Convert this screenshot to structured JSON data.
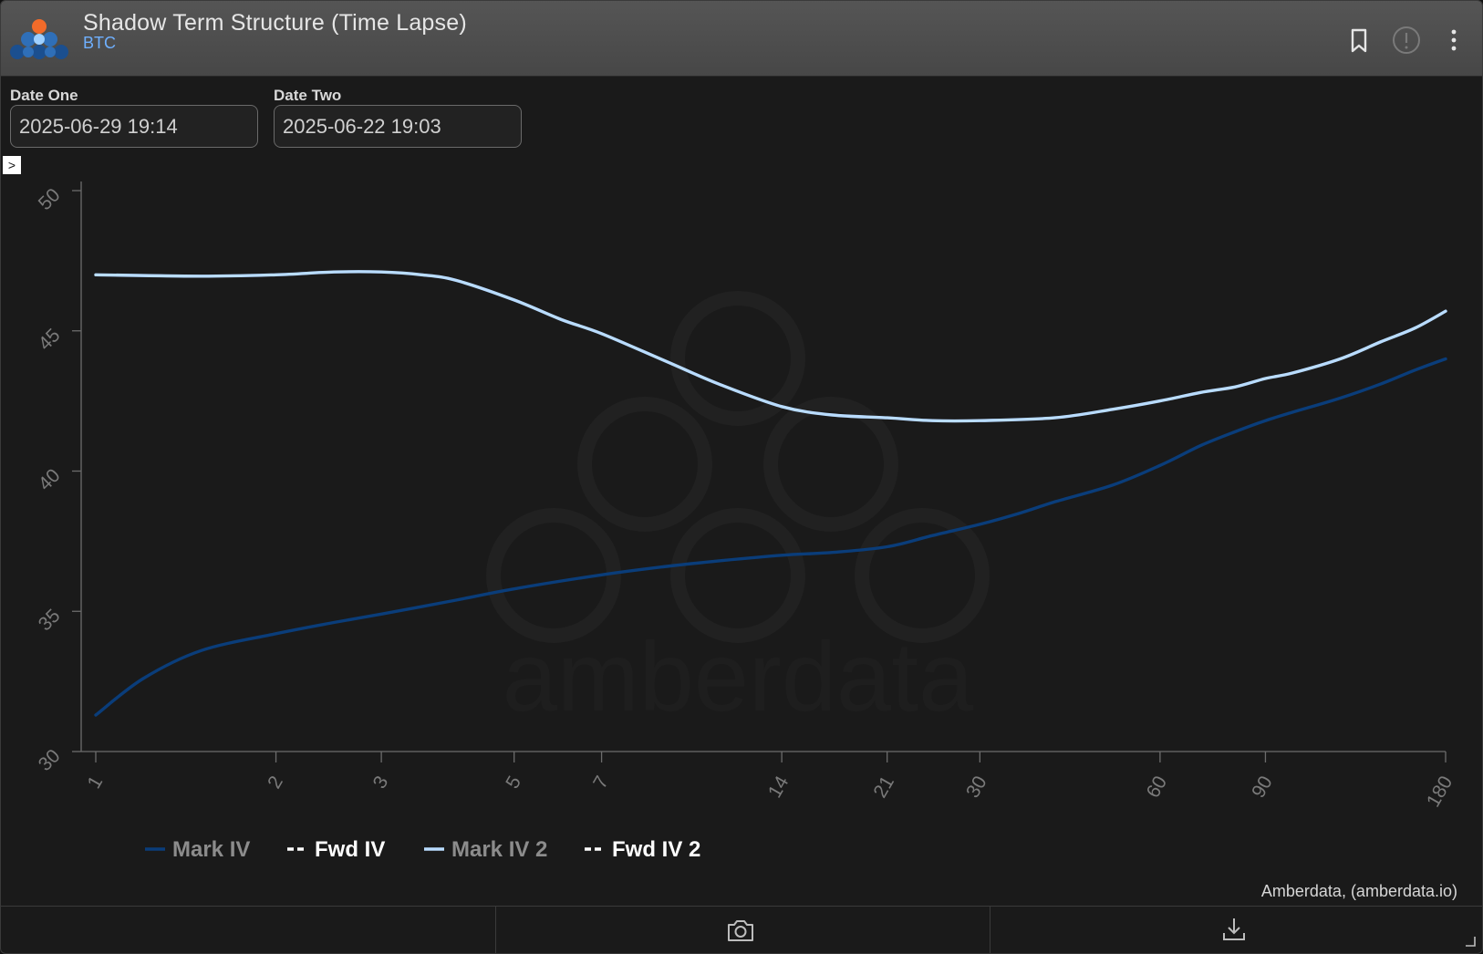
{
  "header": {
    "title": "Shadow Term Structure (Time Lapse)",
    "subtitle": "BTC",
    "icons": [
      "bookmark-icon",
      "info-icon",
      "more-vert-icon"
    ]
  },
  "controls": {
    "date_one_label": "Date One",
    "date_one_value": "2025-06-29 19:14",
    "date_two_label": "Date Two",
    "date_two_value": "2025-06-22 19:03",
    "toggle_glyph": ">"
  },
  "watermark_text": "amberdata",
  "source_credit": "Amberdata, (amberdata.io)",
  "footer": {
    "icons": [
      "camera-icon",
      "download-icon"
    ]
  },
  "colors": {
    "background": "#1a1a1a",
    "header": "#4f4f4f",
    "mark_iv": "#0a3d7a",
    "mark_iv_2": "#b9dcff",
    "subtitle": "#6fb0ff",
    "axis": "#6c6c6c"
  },
  "chart_data": {
    "type": "line",
    "ylim": [
      30,
      50
    ],
    "yticks": [
      30,
      35,
      40,
      45,
      50
    ],
    "xticks": [
      1,
      2,
      3,
      5,
      7,
      14,
      21,
      30,
      60,
      90,
      180
    ],
    "xlim": [
      1,
      180
    ],
    "xscale": "log",
    "legend_position": "bottom-left",
    "legend": [
      "Mark IV",
      "Fwd IV",
      "Mark IV 2",
      "Fwd IV 2"
    ],
    "series": [
      {
        "name": "Mark IV",
        "style": "solid",
        "x": [
          1,
          1.2,
          1.5,
          2,
          2.5,
          3,
          4,
          5,
          7,
          9,
          11,
          14,
          17,
          21,
          25,
          30,
          35,
          40,
          50,
          60,
          70,
          80,
          90,
          100,
          120,
          140,
          160,
          180
        ],
        "y": [
          31.3,
          32.6,
          33.6,
          34.2,
          34.6,
          34.9,
          35.4,
          35.8,
          36.3,
          36.6,
          36.8,
          37.0,
          37.1,
          37.3,
          37.7,
          38.1,
          38.5,
          38.9,
          39.5,
          40.2,
          40.9,
          41.4,
          41.8,
          42.1,
          42.6,
          43.1,
          43.6,
          44.0
        ]
      },
      {
        "name": "Fwd IV",
        "style": "dashed",
        "x": [],
        "y": []
      },
      {
        "name": "Mark IV 2",
        "style": "solid",
        "x": [
          1,
          1.5,
          2,
          2.5,
          3,
          3.5,
          4,
          5,
          6,
          7,
          9,
          11,
          14,
          17,
          21,
          25,
          30,
          40,
          50,
          60,
          70,
          80,
          90,
          100,
          120,
          140,
          160,
          180
        ],
        "y": [
          47.0,
          46.95,
          47.0,
          47.1,
          47.1,
          47.0,
          46.8,
          46.1,
          45.4,
          44.9,
          43.9,
          43.1,
          42.3,
          42.0,
          41.9,
          41.8,
          41.8,
          41.9,
          42.2,
          42.5,
          42.8,
          43.0,
          43.3,
          43.5,
          44.0,
          44.6,
          45.1,
          45.7
        ]
      },
      {
        "name": "Fwd IV 2",
        "style": "dashed",
        "x": [],
        "y": []
      }
    ]
  }
}
